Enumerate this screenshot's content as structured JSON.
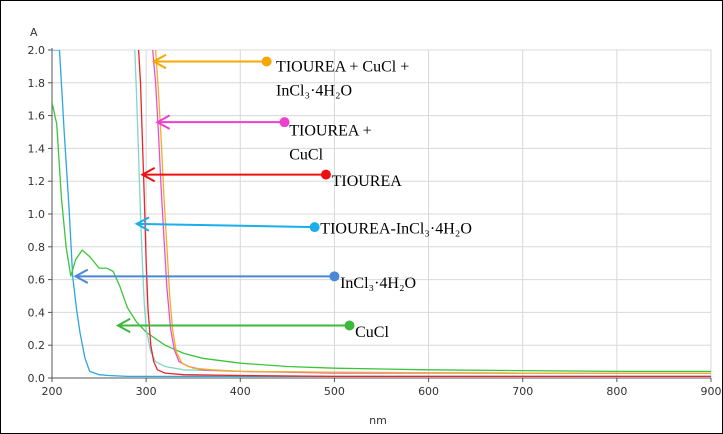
{
  "chart_data": {
    "type": "line",
    "ylabel": "A",
    "xlabel": "nm",
    "xlim": [
      200,
      900
    ],
    "ylim": [
      0,
      2.0
    ],
    "x_ticks": [
      "200",
      "300",
      "400",
      "500",
      "600",
      "700",
      "800",
      "900"
    ],
    "y_ticks": [
      "0.0",
      "0.2",
      "0.4",
      "0.6",
      "0.8",
      "1.0",
      "1.2",
      "1.4",
      "1.6",
      "1.8",
      "2.0"
    ],
    "grid": true,
    "series": [
      {
        "name": "InCl3·4H2O",
        "color": "#2aa6e0",
        "x": [
          200,
          203,
          208,
          213,
          218,
          222,
          226,
          230,
          235,
          240,
          250,
          260,
          280,
          300,
          400,
          600,
          900
        ],
        "y": [
          2.0,
          2.0,
          2.0,
          1.5,
          1.05,
          0.62,
          0.42,
          0.27,
          0.12,
          0.04,
          0.02,
          0.015,
          0.01,
          0.01,
          0.01,
          0.01,
          0.01
        ]
      },
      {
        "name": "CuCl",
        "color": "#3cc43c",
        "x": [
          200,
          205,
          210,
          215,
          220,
          225,
          232,
          240,
          250,
          258,
          265,
          272,
          280,
          290,
          300,
          320,
          340,
          360,
          400,
          450,
          500,
          600,
          700,
          800,
          900
        ],
        "y": [
          1.68,
          1.55,
          1.1,
          0.8,
          0.62,
          0.72,
          0.78,
          0.74,
          0.67,
          0.67,
          0.65,
          0.56,
          0.43,
          0.34,
          0.28,
          0.2,
          0.15,
          0.12,
          0.09,
          0.07,
          0.06,
          0.05,
          0.045,
          0.04,
          0.04
        ]
      },
      {
        "name": "TIOUREA-InCl3·4H2O",
        "color": "#7dd8c8",
        "x": [
          288,
          290,
          292,
          294,
          296,
          298,
          300,
          305,
          310,
          320,
          340,
          400,
          500,
          700,
          900
        ],
        "y": [
          2.0,
          1.7,
          1.35,
          1.0,
          0.7,
          0.45,
          0.3,
          0.16,
          0.1,
          0.07,
          0.05,
          0.04,
          0.035,
          0.03,
          0.03
        ]
      },
      {
        "name": "TIOUREA",
        "color": "#e8262a",
        "x": [
          292,
          294,
          296,
          298,
          300,
          302,
          305,
          308,
          312,
          320,
          340,
          400,
          500,
          700,
          900
        ],
        "y": [
          2.0,
          1.8,
          1.45,
          1.1,
          0.72,
          0.42,
          0.2,
          0.1,
          0.05,
          0.03,
          0.02,
          0.015,
          0.01,
          0.01,
          0.01
        ]
      },
      {
        "name": "TIOUREA + CuCl",
        "color": "#e84fd8",
        "x": [
          307,
          310,
          313,
          316,
          319,
          322,
          326,
          330,
          335,
          345,
          360,
          400,
          500,
          700,
          900
        ],
        "y": [
          2.0,
          1.8,
          1.5,
          1.15,
          0.85,
          0.55,
          0.3,
          0.17,
          0.1,
          0.07,
          0.05,
          0.04,
          0.03,
          0.03,
          0.03
        ]
      },
      {
        "name": "TIOUREA + CuCl + InCl3·4H2O",
        "color": "#f0b020",
        "x": [
          310,
          313,
          316,
          319,
          322,
          325,
          328,
          332,
          338,
          350,
          370,
          400,
          500,
          700,
          900
        ],
        "y": [
          2.0,
          1.75,
          1.45,
          1.1,
          0.8,
          0.5,
          0.3,
          0.16,
          0.09,
          0.06,
          0.05,
          0.04,
          0.035,
          0.03,
          0.03
        ]
      }
    ],
    "annotations": [
      {
        "lines": [
          "TIOUREA + CuCl +",
          "InCl₃·4H₂O"
        ],
        "color": "#f5a800",
        "dot_nm": 428,
        "dot_a": 1.93,
        "arrow_nm": 308,
        "arrow_a": 1.93,
        "text_nm": 438,
        "text_a": 1.87
      },
      {
        "lines": [
          "TIOUREA +",
          "CuCl"
        ],
        "color": "#ee3fcf",
        "dot_nm": 447,
        "dot_a": 1.56,
        "arrow_nm": 312,
        "arrow_a": 1.56,
        "text_nm": 452,
        "text_a": 1.48
      },
      {
        "lines": [
          "TIOUREA"
        ],
        "color": "#ee1010",
        "dot_nm": 491,
        "dot_a": 1.24,
        "arrow_nm": 296,
        "arrow_a": 1.24,
        "text_nm": 497,
        "text_a": 1.17
      },
      {
        "lines": [
          "TIOUREA-InCl₃·4H₂O"
        ],
        "color": "#1aaeea",
        "dot_nm": 479,
        "dot_a": 0.92,
        "arrow_nm": 290,
        "arrow_a": 0.94,
        "text_nm": 485,
        "text_a": 0.88
      },
      {
        "lines": [
          "InCl₃·4H₂O"
        ],
        "color": "#4a88d6",
        "dot_nm": 500,
        "dot_a": 0.62,
        "arrow_nm": 225,
        "arrow_a": 0.62,
        "text_nm": 506,
        "text_a": 0.55
      },
      {
        "lines": [
          "CuCl"
        ],
        "color": "#3cb83c",
        "dot_nm": 516,
        "dot_a": 0.32,
        "arrow_nm": 270,
        "arrow_a": 0.32,
        "text_nm": 522,
        "text_a": 0.25
      }
    ]
  }
}
